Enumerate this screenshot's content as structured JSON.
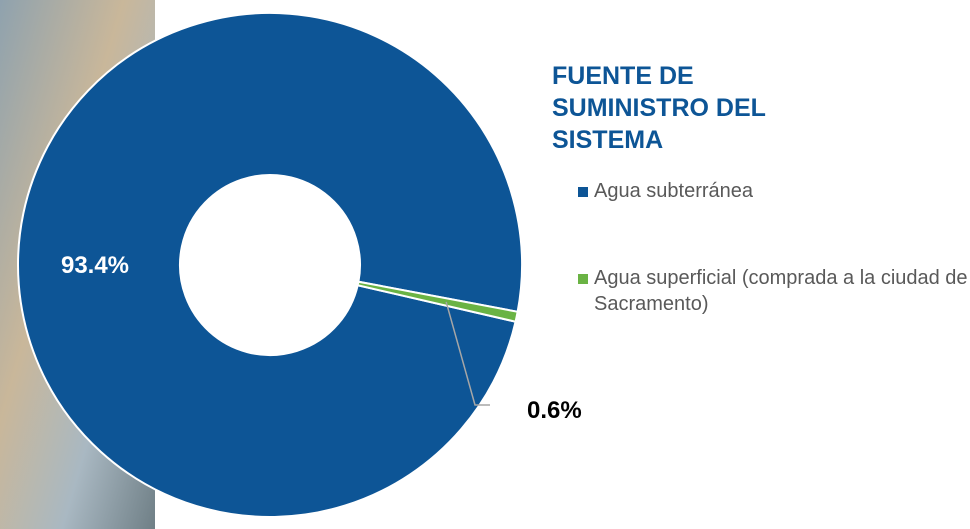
{
  "chart_data": {
    "type": "pie",
    "title": "FUENTE DE SUMINISTRO DEL SISTEMA",
    "categories": [
      "Agua subterránea",
      "Agua superficial (comprada a la ciudad de Sacramento)"
    ],
    "values": [
      93.4,
      0.6
    ],
    "value_labels": [
      "93.4%",
      "0.6%"
    ],
    "colors": [
      "#0d5596",
      "#6ab344"
    ]
  }
}
